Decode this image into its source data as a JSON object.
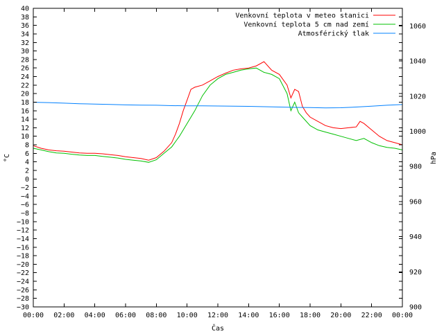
{
  "chart_data": {
    "type": "line",
    "title": "",
    "xlabel": "Čas",
    "ylabel": "°C",
    "y2label": "hPa",
    "xlim": [
      0,
      24
    ],
    "ylim": [
      -30,
      40
    ],
    "y2lim": [
      900,
      1070
    ],
    "grid": false,
    "legend": "top-right",
    "x_tick_labels": [
      "00:00",
      "02:00",
      "04:00",
      "06:00",
      "08:00",
      "10:00",
      "12:00",
      "14:00",
      "16:00",
      "18:00",
      "20:00",
      "22:00",
      "00:00"
    ],
    "y_ticks": [
      40,
      38,
      36,
      34,
      32,
      30,
      28,
      26,
      24,
      22,
      20,
      18,
      16,
      14,
      12,
      10,
      8,
      6,
      4,
      2,
      0,
      -2,
      -4,
      -6,
      -8,
      -10,
      -12,
      -14,
      -16,
      -18,
      -20,
      -22,
      -24,
      -26,
      -28,
      -30
    ],
    "y2_ticks": [
      1060,
      1040,
      1020,
      1000,
      980,
      960,
      940,
      920,
      900
    ],
    "series": [
      {
        "name": "Venkovní teplota v meteo stanici",
        "axis": "left",
        "color": "#ff0000",
        "x": [
          0,
          0.5,
          1,
          1.5,
          2,
          2.5,
          3,
          3.5,
          4,
          4.5,
          5,
          5.5,
          6,
          6.5,
          7,
          7.5,
          8,
          8.5,
          9,
          9.25,
          9.5,
          9.75,
          10,
          10.25,
          10.5,
          11,
          11.5,
          12,
          12.5,
          13,
          13.5,
          14,
          14.5,
          15,
          15.5,
          16,
          16.5,
          16.75,
          17,
          17.25,
          17.5,
          17.75,
          18,
          18.5,
          19,
          19.5,
          20,
          20.5,
          21,
          21.25,
          21.5,
          22,
          22.5,
          23,
          23.5,
          24
        ],
        "y": [
          7.8,
          7.2,
          6.8,
          6.6,
          6.5,
          6.3,
          6.1,
          6.0,
          6.0,
          5.9,
          5.7,
          5.5,
          5.2,
          5.0,
          4.8,
          4.4,
          5.0,
          6.5,
          8.5,
          10.5,
          13.0,
          16.0,
          18.5,
          21.0,
          21.5,
          22.0,
          23.0,
          24.0,
          24.8,
          25.5,
          25.8,
          26.0,
          26.5,
          27.5,
          25.5,
          24.5,
          22.0,
          19.0,
          21.0,
          20.5,
          17.0,
          15.5,
          14.5,
          13.5,
          12.5,
          12.0,
          11.8,
          12.0,
          12.2,
          13.5,
          13.0,
          11.5,
          10.0,
          9.0,
          8.5,
          8.0
        ]
      },
      {
        "name": "Venkovní teplota 5 cm nad zemí",
        "axis": "left",
        "color": "#00c000",
        "x": [
          0,
          0.5,
          1,
          1.5,
          2,
          2.5,
          3,
          3.5,
          4,
          4.5,
          5,
          5.5,
          6,
          6.5,
          7,
          7.5,
          8,
          8.5,
          9,
          9.5,
          10,
          10.5,
          11,
          11.5,
          12,
          12.5,
          13,
          13.5,
          14,
          14.5,
          15,
          15.5,
          16,
          16.5,
          16.75,
          17,
          17.25,
          17.5,
          18,
          18.5,
          19,
          19.5,
          20,
          20.5,
          21,
          21.5,
          22,
          22.5,
          23,
          23.5,
          24
        ],
        "y": [
          7.2,
          6.8,
          6.4,
          6.1,
          6.0,
          5.8,
          5.6,
          5.5,
          5.5,
          5.3,
          5.1,
          4.9,
          4.6,
          4.4,
          4.2,
          3.9,
          4.5,
          6.0,
          7.5,
          10.0,
          13.0,
          16.0,
          19.5,
          22.0,
          23.5,
          24.5,
          25.0,
          25.5,
          25.8,
          26.0,
          25.0,
          24.5,
          23.5,
          20.0,
          16.0,
          18.0,
          15.5,
          14.5,
          12.5,
          11.5,
          11.0,
          10.5,
          10.0,
          9.5,
          9.0,
          9.5,
          8.5,
          7.8,
          7.4,
          7.2,
          6.8
        ]
      },
      {
        "name": "Atmosférický tlak",
        "axis": "right",
        "color": "#0080ff",
        "x": [
          0,
          1,
          2,
          3,
          4,
          5,
          6,
          7,
          8,
          9,
          10,
          11,
          12,
          13,
          14,
          15,
          16,
          17,
          18,
          19,
          20,
          21,
          22,
          23,
          24
        ],
        "y": [
          1016.5,
          1016.3,
          1016,
          1015.7,
          1015.5,
          1015.3,
          1015,
          1014.9,
          1014.8,
          1014.6,
          1014.5,
          1014.5,
          1014.4,
          1014.3,
          1014.2,
          1014,
          1013.8,
          1013.6,
          1013.5,
          1013.3,
          1013.4,
          1013.8,
          1014.3,
          1014.8,
          1015.2
        ]
      }
    ]
  }
}
